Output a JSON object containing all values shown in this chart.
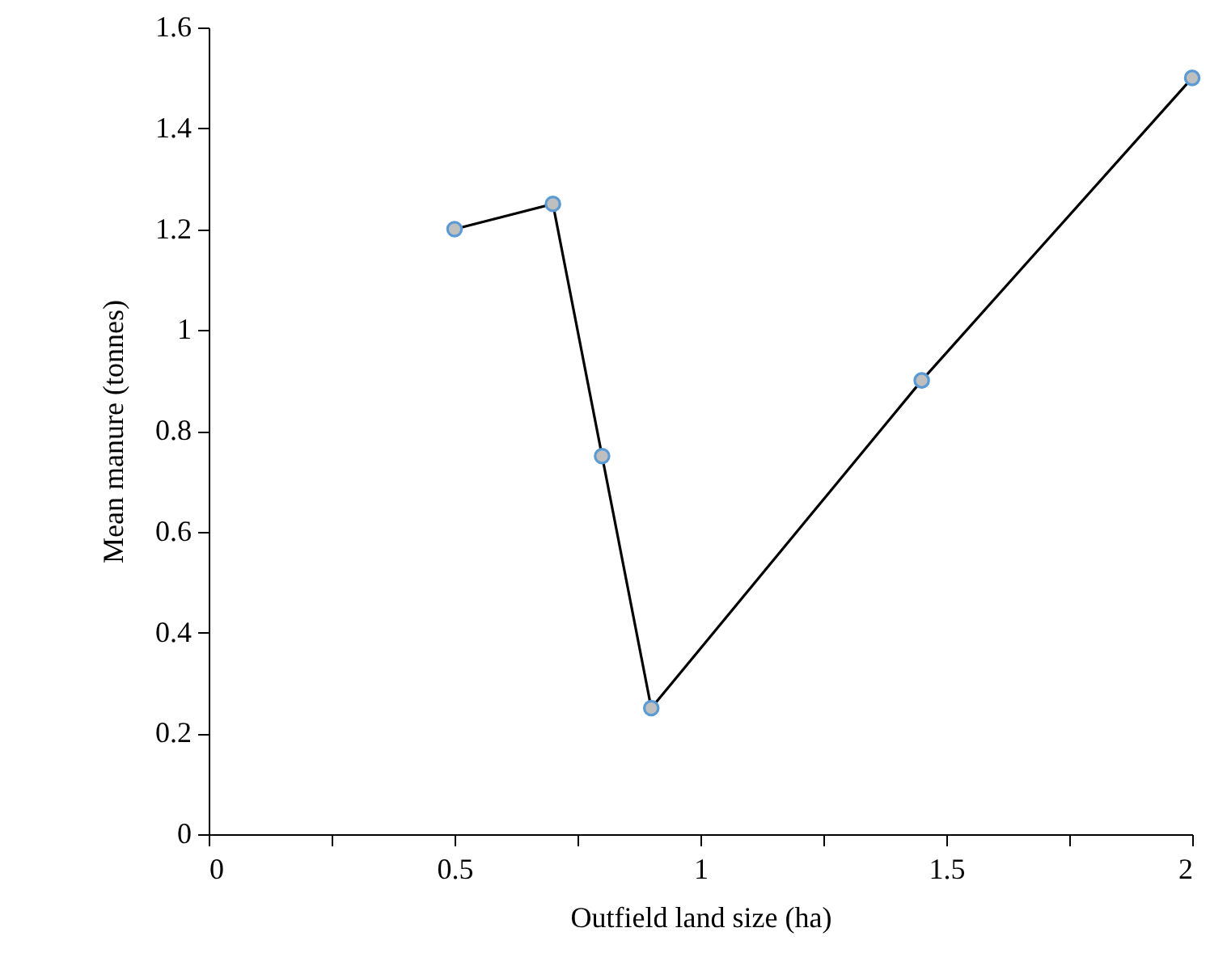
{
  "chart_data": {
    "type": "line",
    "xlabel": "Outfield land size (ha)",
    "ylabel": "Mean manure (tonnes)",
    "x": [
      0.5,
      0.7,
      0.8,
      0.9,
      1.45,
      2
    ],
    "series": [
      {
        "color": "#000000",
        "values": [
          1.2,
          1.25,
          0.75,
          0.25,
          0.9,
          1.5
        ]
      }
    ],
    "xlim": [
      0,
      2
    ],
    "xticks": [
      0,
      {
        "value": 0.25,
        "label": null
      },
      0.5,
      {
        "value": 0.75,
        "label": null
      },
      1,
      {
        "value": 1.25,
        "label": null
      },
      1.5,
      {
        "value": 1.75,
        "label": null
      },
      2
    ],
    "ylim": [
      0,
      1.6
    ],
    "yticks": [
      0,
      0.2,
      0.4,
      0.6,
      0.8,
      1,
      1.2,
      1.4,
      1.6
    ],
    "marker": "circle",
    "line_style": "solid"
  }
}
